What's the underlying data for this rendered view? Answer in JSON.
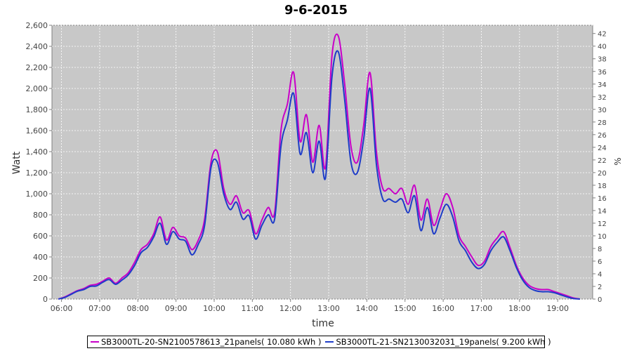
{
  "chart_data": {
    "type": "line",
    "title": "9-6-2015",
    "xlabel": "time",
    "ylabel": "Watt",
    "y2label": "%",
    "ylim": [
      0,
      2600
    ],
    "y2lim": [
      0,
      43.3
    ],
    "grid": true,
    "legend_position": "bottom",
    "x_ticks": [
      "06:00",
      "07:00",
      "08:00",
      "09:00",
      "10:00",
      "11:00",
      "12:00",
      "13:00",
      "14:00",
      "15:00",
      "16:00",
      "17:00",
      "18:00",
      "19:00"
    ],
    "y_ticks": [
      "0",
      "200",
      "400",
      "600",
      "800",
      "1,000",
      "1,200",
      "1,400",
      "1,600",
      "1,800",
      "2,000",
      "2,200",
      "2,400",
      "2,600"
    ],
    "y2_ticks": [
      "0",
      "2",
      "4",
      "6",
      "8",
      "10",
      "12",
      "14",
      "16",
      "18",
      "20",
      "22",
      "24",
      "26",
      "28",
      "30",
      "32",
      "34",
      "36",
      "38",
      "40",
      "42"
    ],
    "x": [
      "05:55",
      "06:05",
      "06:15",
      "06:25",
      "06:35",
      "06:45",
      "06:55",
      "07:05",
      "07:15",
      "07:25",
      "07:35",
      "07:45",
      "07:55",
      "08:05",
      "08:15",
      "08:25",
      "08:35",
      "08:45",
      "08:55",
      "09:05",
      "09:15",
      "09:25",
      "09:35",
      "09:45",
      "09:55",
      "10:05",
      "10:15",
      "10:25",
      "10:35",
      "10:45",
      "10:55",
      "11:05",
      "11:15",
      "11:25",
      "11:35",
      "11:45",
      "11:55",
      "12:05",
      "12:15",
      "12:25",
      "12:35",
      "12:45",
      "12:55",
      "13:05",
      "13:15",
      "13:25",
      "13:35",
      "13:45",
      "13:55",
      "14:05",
      "14:15",
      "14:25",
      "14:35",
      "14:45",
      "14:55",
      "15:05",
      "15:15",
      "15:25",
      "15:35",
      "15:45",
      "15:55",
      "16:05",
      "16:15",
      "16:25",
      "16:35",
      "16:45",
      "16:55",
      "17:05",
      "17:15",
      "17:25",
      "17:35",
      "17:45",
      "17:55",
      "18:05",
      "18:15",
      "18:25",
      "18:35",
      "18:45",
      "18:55",
      "19:05",
      "19:15",
      "19:25",
      "19:35"
    ],
    "series": [
      {
        "name": "SB3000TL-20-SN2100578613_21panels( 10.080 kWh )",
        "color": "#c800c8",
        "values": [
          0,
          20,
          50,
          80,
          100,
          130,
          140,
          170,
          200,
          150,
          200,
          250,
          350,
          470,
          520,
          620,
          780,
          560,
          680,
          600,
          580,
          470,
          560,
          760,
          1300,
          1400,
          1050,
          900,
          980,
          820,
          840,
          620,
          750,
          870,
          820,
          1600,
          1850,
          2150,
          1500,
          1750,
          1300,
          1650,
          1250,
          2300,
          2500,
          2050,
          1450,
          1300,
          1650,
          2150,
          1400,
          1050,
          1050,
          1000,
          1050,
          900,
          1080,
          750,
          950,
          700,
          850,
          1000,
          870,
          600,
          500,
          400,
          320,
          360,
          500,
          580,
          640,
          490,
          320,
          200,
          130,
          100,
          90,
          90,
          70,
          50,
          30,
          10,
          0
        ]
      },
      {
        "name": "SB3000TL-21-SN2130032031_19panels( 9.200 kWh )",
        "color": "#1e3cc8",
        "values": [
          0,
          15,
          45,
          75,
          90,
          120,
          125,
          160,
          185,
          140,
          180,
          230,
          320,
          440,
          490,
          590,
          720,
          520,
          640,
          570,
          550,
          420,
          520,
          700,
          1250,
          1300,
          1000,
          850,
          920,
          760,
          790,
          570,
          700,
          800,
          760,
          1450,
          1700,
          1950,
          1380,
          1580,
          1200,
          1500,
          1150,
          2100,
          2350,
          1900,
          1300,
          1200,
          1520,
          2000,
          1280,
          950,
          950,
          920,
          950,
          820,
          980,
          650,
          870,
          620,
          770,
          900,
          780,
          550,
          460,
          350,
          290,
          330,
          460,
          540,
          590,
          460,
          300,
          180,
          110,
          80,
          70,
          70,
          60,
          40,
          20,
          5,
          0
        ]
      }
    ]
  }
}
